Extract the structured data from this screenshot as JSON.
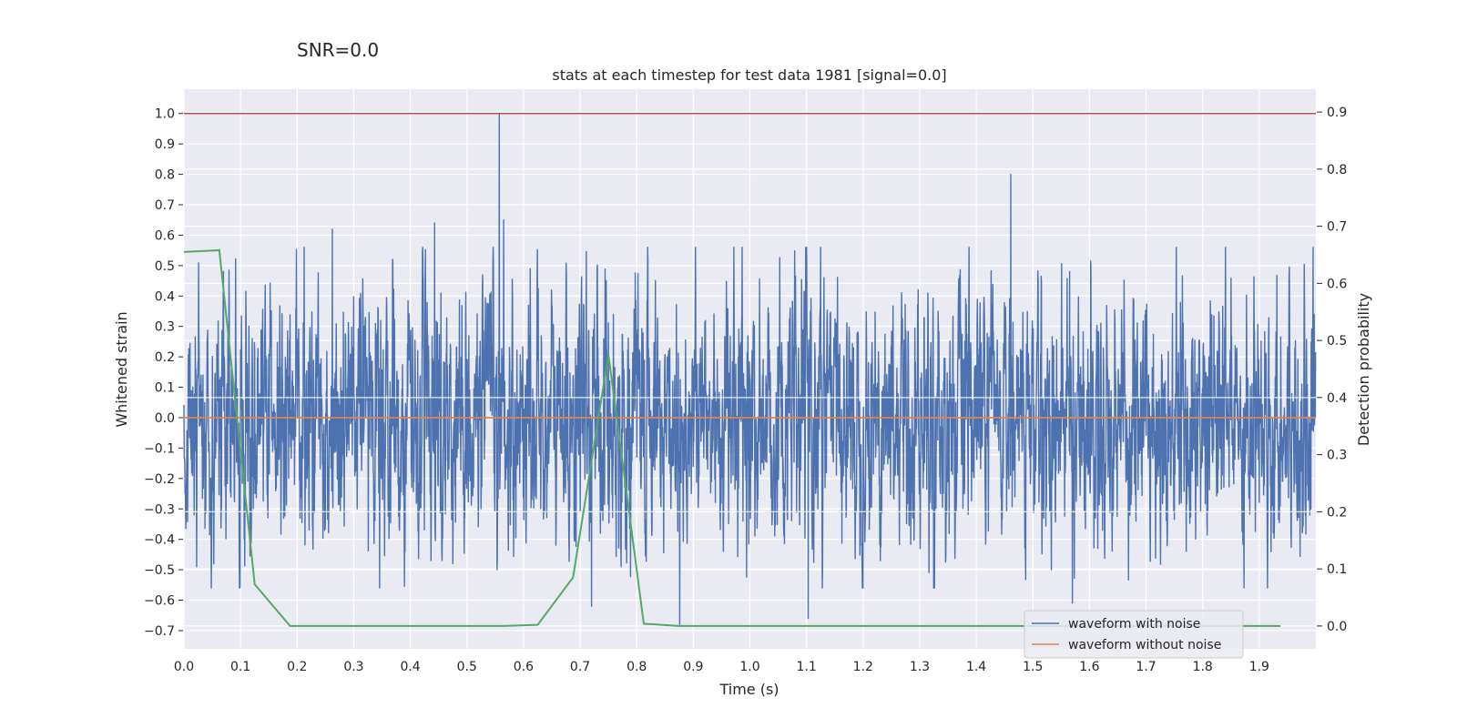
{
  "suptitle": "SNR=0.0",
  "chart_data": {
    "type": "line",
    "title": "stats at each timestep for test data 1981 [signal=0.0]",
    "xlabel": "Time (s)",
    "ylabel": "Whitened strain",
    "y2label": "Detection probability",
    "xlim": [
      0.0,
      2.0
    ],
    "ylim": [
      -0.76,
      1.08
    ],
    "y2lim": [
      -0.04,
      0.94
    ],
    "xticks": [
      0.0,
      0.1,
      0.2,
      0.3,
      0.4,
      0.5,
      0.6,
      0.7,
      0.8,
      0.9,
      1.0,
      1.1,
      1.2,
      1.3,
      1.4,
      1.5,
      1.6,
      1.7,
      1.8,
      1.9
    ],
    "xtick_labels": [
      "0.0",
      "0.1",
      "0.2",
      "0.3",
      "0.4",
      "0.5",
      "0.6",
      "0.7",
      "0.8",
      "0.9",
      "1.0",
      "1.1",
      "1.2",
      "1.3",
      "1.4",
      "1.5",
      "1.6",
      "1.7",
      "1.8",
      "1.9"
    ],
    "yticks": [
      -0.7,
      -0.6,
      -0.5,
      -0.4,
      -0.3,
      -0.2,
      -0.1,
      0.0,
      0.1,
      0.2,
      0.3,
      0.4,
      0.5,
      0.6,
      0.7,
      0.8,
      0.9,
      1.0
    ],
    "ytick_labels": [
      "−0.7",
      "−0.6",
      "−0.5",
      "−0.4",
      "−0.3",
      "−0.2",
      "−0.1",
      "0.0",
      "0.1",
      "0.2",
      "0.3",
      "0.4",
      "0.5",
      "0.6",
      "0.7",
      "0.8",
      "0.9",
      "1.0"
    ],
    "y2ticks": [
      0.0,
      0.1,
      0.2,
      0.3,
      0.4,
      0.5,
      0.6,
      0.7,
      0.8,
      0.9
    ],
    "y2tick_labels": [
      "0.0",
      "0.1",
      "0.2",
      "0.3",
      "0.4",
      "0.5",
      "0.6",
      "0.7",
      "0.8",
      "0.9"
    ],
    "grid": true,
    "legend_location": "lower-right",
    "series": [
      {
        "name": "waveform with noise",
        "axis": "left",
        "color": "#4c72b0",
        "sample_rate": 2048,
        "amplitude_sd": 0.2,
        "peaks": [
          {
            "x": 0.557,
            "y": 1.0
          },
          {
            "x": 0.565,
            "y": 0.65
          },
          {
            "x": 1.461,
            "y": 0.8
          },
          {
            "x": 0.443,
            "y": 0.64
          },
          {
            "x": 0.262,
            "y": 0.62
          },
          {
            "x": 0.72,
            "y": -0.62
          },
          {
            "x": 0.876,
            "y": -0.68
          },
          {
            "x": 1.103,
            "y": -0.66
          },
          {
            "x": 1.57,
            "y": -0.61
          }
        ]
      },
      {
        "name": "waveform without noise",
        "axis": "left",
        "color": "#dd8452",
        "x": [
          0.0,
          2.0
        ],
        "y": [
          0.0,
          0.0
        ]
      },
      {
        "name": "detection probability",
        "axis": "right",
        "color": "#55a868",
        "x": [
          0.0,
          0.0625,
          0.125,
          0.1875,
          0.25,
          0.3125,
          0.375,
          0.4375,
          0.5,
          0.5625,
          0.625,
          0.6875,
          0.75,
          0.8125,
          0.875,
          0.9375,
          1.0,
          1.0625,
          1.125,
          1.1875,
          1.25,
          1.3125,
          1.375,
          1.4375,
          1.5,
          1.5625,
          1.625,
          1.6875,
          1.75,
          1.8125,
          1.875,
          1.9375
        ],
        "y": [
          0.655,
          0.658,
          0.073,
          0.0,
          0.0,
          0.0,
          0.0,
          0.0,
          0.0,
          0.0,
          0.002,
          0.085,
          0.475,
          0.004,
          0.0,
          0.0,
          0.0,
          0.0,
          0.0,
          0.0,
          0.0,
          0.0,
          0.0,
          0.0,
          0.0,
          0.0,
          0.0,
          0.0,
          0.0,
          0.0,
          0.0,
          0.0
        ]
      }
    ],
    "threshold": {
      "axis": "left",
      "y": 1.0,
      "color": "#c44e52"
    }
  }
}
